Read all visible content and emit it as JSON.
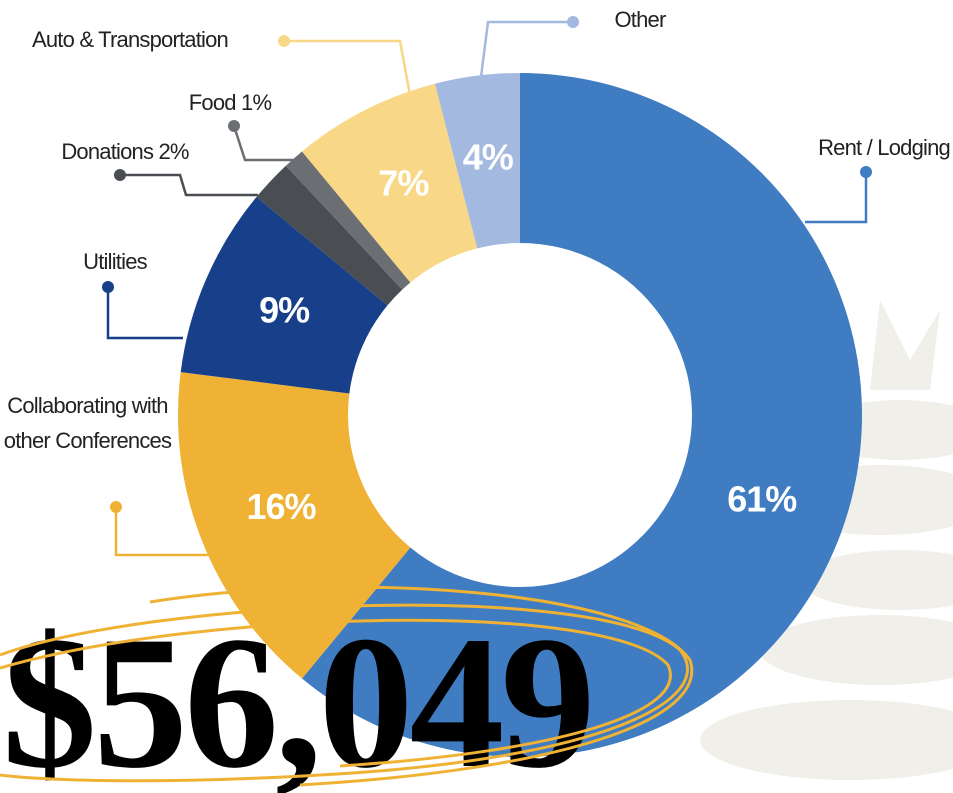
{
  "chart_data": {
    "type": "donut",
    "categories": [
      "Rent / Lodging",
      "Collaborating with other Conferences",
      "Utilities",
      "Donations 2%",
      "Food 1%",
      "Auto & Transportation",
      "Other"
    ],
    "values": [
      61,
      16,
      9,
      2,
      1,
      7,
      4
    ],
    "value_labels": [
      "61%",
      "16%",
      "9%",
      null,
      null,
      "7%",
      "4%"
    ],
    "colors": [
      "#3f7cc1",
      "#efb234",
      "#173f8a",
      "#4a4d52",
      "#6b6e73",
      "#f8d786",
      "#a3b9e0"
    ],
    "annotation": "$56,049"
  }
}
